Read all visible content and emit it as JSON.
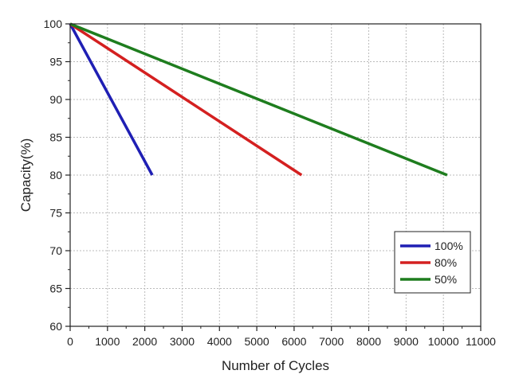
{
  "chart_data": {
    "type": "line",
    "xlabel": "Number of Cycles",
    "ylabel": "Capacity(%)",
    "xlim": [
      0,
      11000
    ],
    "ylim": [
      60,
      100
    ],
    "xticks": [
      0,
      1000,
      2000,
      3000,
      4000,
      5000,
      6000,
      7000,
      8000,
      9000,
      10000,
      11000
    ],
    "yticks": [
      60,
      65,
      70,
      75,
      80,
      85,
      90,
      95,
      100
    ],
    "grid": true,
    "legend_position": "bottom-right",
    "series": [
      {
        "name": "100%",
        "color": "#1f1fb4",
        "x": [
          0,
          2200
        ],
        "y": [
          100,
          80
        ]
      },
      {
        "name": "80%",
        "color": "#d42020",
        "x": [
          0,
          6200
        ],
        "y": [
          100,
          80
        ]
      },
      {
        "name": "50%",
        "color": "#1e7d1e",
        "x": [
          0,
          10100
        ],
        "y": [
          100,
          80
        ]
      }
    ]
  }
}
